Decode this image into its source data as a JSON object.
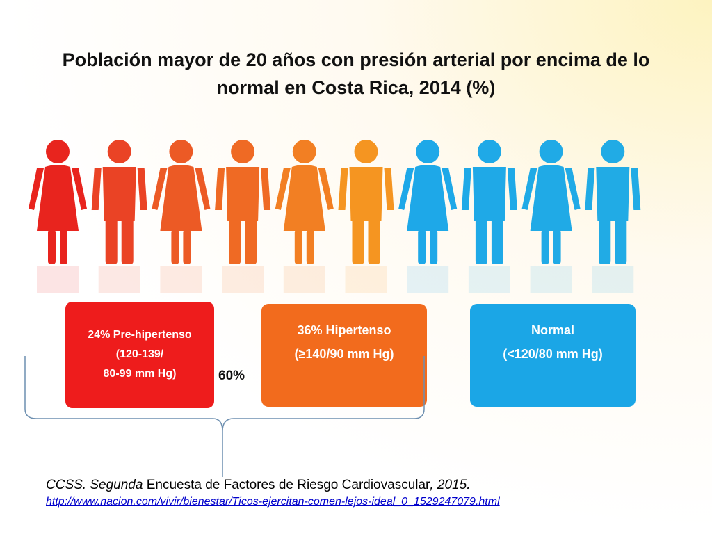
{
  "title": "Población mayor de 20 años con presión arterial por encima de lo normal en Costa Rica, 2014 (%)",
  "chart_data": {
    "type": "pictogram",
    "title": "Población mayor de 20 años con presión arterial por encima de lo normal en Costa Rica, 2014 (%)",
    "figures": [
      {
        "sex": "female",
        "color": "#e8241e"
      },
      {
        "sex": "male",
        "color": "#ea4325"
      },
      {
        "sex": "female",
        "color": "#ec5a25"
      },
      {
        "sex": "male",
        "color": "#ef6a24"
      },
      {
        "sex": "female",
        "color": "#f27f23"
      },
      {
        "sex": "male",
        "color": "#f59521"
      },
      {
        "sex": "female",
        "color": "#1ea8e8"
      },
      {
        "sex": "male",
        "color": "#1fa9e7"
      },
      {
        "sex": "female",
        "color": "#20aae6"
      },
      {
        "sex": "male",
        "color": "#21abe5"
      }
    ],
    "categories": [
      {
        "key": "pre",
        "value": 24,
        "line1": "24% Pre-hipertenso",
        "line2": "(120-139/",
        "line3": "80-99 mm Hg)",
        "color": "#ee1c1c"
      },
      {
        "key": "hyp",
        "value": 36,
        "line1": "36% Hipertenso",
        "line2": "(≥140/90 mm Hg)",
        "color": "#f26b1d"
      },
      {
        "key": "norm",
        "line1": "Normal",
        "line2": "(<120/80 mm Hg)",
        "color": "#1ba6e6"
      }
    ],
    "total_label": "60%"
  },
  "source": {
    "prefix": "CCSS. ",
    "italic1": "Segunda",
    "middle": " Encuesta de Factores de Riesgo Cardiovascular",
    "italic2": ", 2015.",
    "url": "http://www.nacion.com/vivir/bienestar/Ticos-ejercitan-comen-lejos-ideal_0_1529247079.html"
  }
}
